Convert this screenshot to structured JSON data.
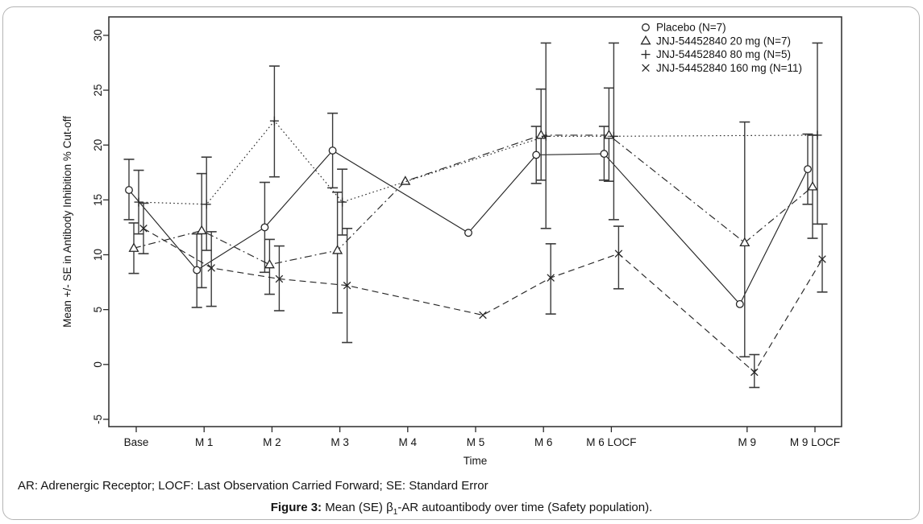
{
  "figure": {
    "footnote": "AR: Adrenergic Receptor; LOCF: Last Observation Carried Forward; SE: Standard Error",
    "caption": {
      "label": "Figure 3:",
      "before_sub": " Mean (SE) β",
      "sub": "1",
      "after_sub": "-AR autoantibody over time (Safety population)."
    }
  },
  "chart_data": {
    "type": "line",
    "title": "",
    "xlabel": "Time",
    "ylabel": "Mean +/- SE in Antibody Inhibition % Cut-off",
    "ylim": [
      -5,
      30
    ],
    "yticks": [
      -5,
      0,
      5,
      10,
      15,
      20,
      25,
      30
    ],
    "grid": false,
    "legend_position": "top-right-inside",
    "error_bars": "mean +/- SE",
    "categories": [
      "Base",
      "M 1",
      "M 2",
      "M 3",
      "M 4",
      "M 5",
      "M 6",
      "M 6 LOCF",
      "M 9",
      "M 9 LOCF"
    ],
    "x_positions": [
      0,
      1,
      2,
      3,
      4,
      5,
      6,
      7,
      9,
      10
    ],
    "series": [
      {
        "name": "Placebo (N=7)",
        "marker": "circle",
        "line": "solid",
        "offset": -9,
        "values": [
          15.9,
          8.6,
          12.5,
          19.5,
          null,
          12.0,
          19.1,
          19.2,
          5.5,
          17.8
        ],
        "err_lo": [
          13.2,
          5.2,
          8.4,
          16.1,
          null,
          null,
          16.5,
          16.8,
          null,
          14.6
        ],
        "err_hi": [
          18.7,
          11.9,
          16.6,
          22.9,
          null,
          null,
          21.7,
          21.7,
          null,
          21.0
        ]
      },
      {
        "name": "JNJ-54452840 20 mg (N=7)",
        "marker": "triangle",
        "line": "dashdot",
        "offset": -3,
        "values": [
          10.6,
          12.2,
          9.1,
          10.4,
          16.7,
          null,
          20.9,
          20.9,
          11.1,
          16.2
        ],
        "err_lo": [
          8.3,
          7.0,
          6.4,
          4.7,
          null,
          null,
          16.8,
          16.7,
          0.7,
          11.5
        ],
        "err_hi": [
          12.9,
          17.4,
          11.4,
          15.7,
          null,
          null,
          25.1,
          25.2,
          22.1,
          20.9
        ]
      },
      {
        "name": "JNJ-54452840 80 mg (N=5)",
        "marker": "plus",
        "line": "dotted",
        "offset": 3,
        "values": [
          14.8,
          14.6,
          22.2,
          14.8,
          null,
          null,
          20.8,
          20.8,
          null,
          20.9
        ],
        "err_lo": [
          11.9,
          10.4,
          17.1,
          11.8,
          null,
          null,
          12.4,
          13.2,
          null,
          12.8
        ],
        "err_hi": [
          17.7,
          18.9,
          27.2,
          17.8,
          null,
          null,
          29.3,
          29.3,
          null,
          29.3
        ]
      },
      {
        "name": "JNJ-54452840 160 mg (N=11)",
        "marker": "cross",
        "line": "dashed",
        "offset": 9,
        "values": [
          12.4,
          8.8,
          7.8,
          7.2,
          null,
          4.5,
          7.9,
          10.1,
          -0.7,
          9.6
        ],
        "err_lo": [
          10.1,
          5.3,
          4.9,
          2.0,
          null,
          null,
          4.6,
          6.9,
          -2.1,
          6.6
        ],
        "err_hi": [
          14.7,
          12.1,
          10.8,
          12.4,
          null,
          null,
          11.0,
          12.6,
          0.9,
          12.8
        ]
      }
    ]
  }
}
